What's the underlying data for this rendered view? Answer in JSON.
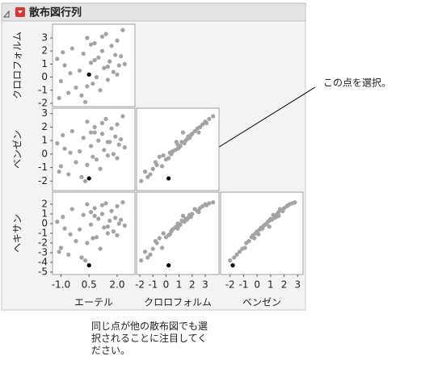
{
  "chart_data": {
    "type": "scatter_matrix",
    "title": "散布図行列",
    "annotation": "この点を選択。",
    "note": "同じ点が他の散布図でも選択されることに注目してください。",
    "point_color": "#a3a3a3",
    "highlight": {
      "index": 0,
      "color": "#000000"
    },
    "variables": [
      {
        "name": "エーテル",
        "lim": [
          -1.45,
          2.95
        ],
        "ticks": [
          {
            "value": -1,
            "label": "-1.0"
          },
          0.5,
          {
            "value": 2,
            "label": "2.0"
          }
        ],
        "values": [
          0.5,
          -1.2,
          -1.0,
          -0.8,
          -0.6,
          -0.4,
          -0.2,
          0,
          0.2,
          0.3,
          0.4,
          0.6,
          0.7,
          0.8,
          0.9,
          1.0,
          1.1,
          1.2,
          1.3,
          1.4,
          1.5,
          1.6,
          1.7,
          1.8,
          1.9,
          2.0,
          2.1,
          2.2,
          2.3,
          2.4,
          -1.1,
          -0.5,
          0.1,
          0.6,
          1.5,
          -0.9,
          0.4,
          1.2,
          2.0,
          0.8
        ]
      },
      {
        "name": "クロロフォルム",
        "lim": [
          -2.25,
          4.05
        ],
        "ticks": [
          -2,
          -1,
          0,
          1,
          2,
          3
        ],
        "values": [
          0.2,
          1.4,
          -0.3,
          0.9,
          -1.2,
          2.2,
          -0.8,
          0.5,
          1.8,
          -1.9,
          3.0,
          1.1,
          -0.5,
          2.6,
          0,
          1.5,
          -1.0,
          2.0,
          0.7,
          3.3,
          -0.2,
          1.2,
          2.4,
          0.4,
          1.7,
          2.8,
          0.9,
          1.6,
          3.6,
          1.0,
          -1.6,
          0.3,
          -1.4,
          2.5,
          0.8,
          1.9,
          -0.7,
          3.1,
          0.2,
          1.3
        ]
      },
      {
        "name": "ベンゼン",
        "lim": [
          -2.7,
          3.4
        ],
        "ticks": [
          -2,
          -1,
          0,
          1,
          2,
          3
        ],
        "values": [
          -1.8,
          0.8,
          -0.9,
          0.4,
          -1.5,
          1.7,
          -0.6,
          0.2,
          1.2,
          -2.0,
          2.4,
          0.6,
          -0.2,
          2.0,
          -0.4,
          1.0,
          -1.1,
          1.5,
          0.3,
          2.6,
          -0.1,
          0.9,
          1.9,
          0,
          1.3,
          2.2,
          0.7,
          1.1,
          2.8,
          0.5,
          -1.3,
          0.1,
          -1.7,
          1.6,
          0.9,
          1.4,
          -0.8,
          2.3,
          -0.3,
          1.6
        ]
      },
      {
        "name": "ヘキサン",
        "lim": [
          -5.25,
          3.25
        ],
        "ticks": [
          -5,
          -4,
          -3,
          -2,
          -1,
          0,
          1,
          2
        ],
        "values": [
          -4.3,
          0.2,
          -2.5,
          -0.5,
          -3.2,
          1.5,
          -1.8,
          -0.6,
          0.9,
          -3.8,
          2.0,
          -0.1,
          -1.5,
          1.6,
          -1.4,
          0.5,
          -2.6,
          1.0,
          -0.4,
          2.1,
          -1.0,
          0.3,
          1.3,
          -0.8,
          0.6,
          1.8,
          0,
          0.4,
          2.2,
          -0.2,
          -2.9,
          -1.1,
          -3.5,
          1.2,
          -0.3,
          0.7,
          -2.0,
          1.9,
          -1.2,
          0.8
        ]
      }
    ]
  }
}
